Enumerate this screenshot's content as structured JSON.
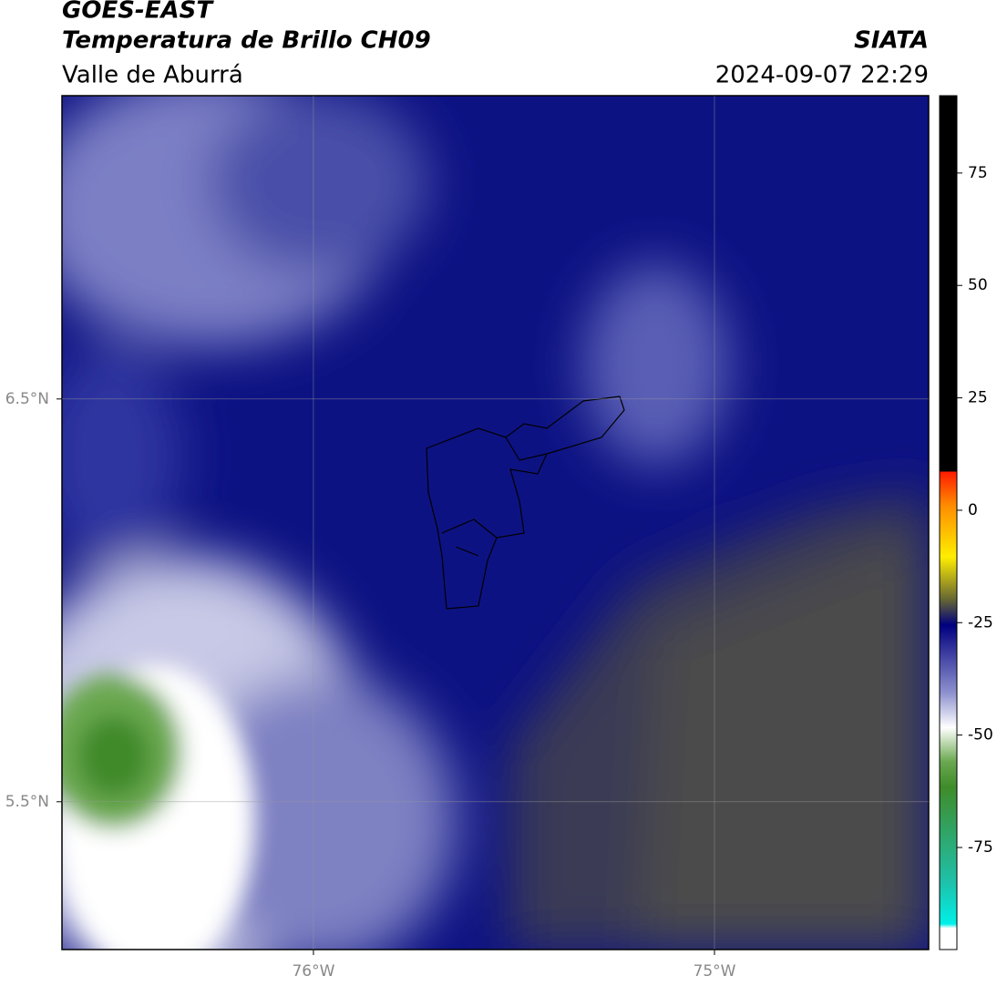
{
  "header": {
    "title": "GOES-EAST",
    "subtitle": "Temperatura de Brillo CH09",
    "region": "Valle de Aburrá",
    "agency": "SIATA",
    "datetime": "2024-09-07 22:29"
  },
  "map": {
    "xlim": [
      -76.627,
      -74.466
    ],
    "ylim": [
      5.133,
      7.253
    ],
    "xticks": [
      {
        "value": -76,
        "label": "76°W"
      },
      {
        "value": -75,
        "label": "75°W"
      }
    ],
    "yticks": [
      {
        "value": 6.5,
        "label": "6.5°N"
      },
      {
        "value": 5.5,
        "label": "5.5°N"
      }
    ],
    "grid": true
  },
  "colorbar": {
    "lim": [
      -97.7,
      92.2
    ],
    "ticks": [
      75,
      50,
      25,
      0,
      -25,
      -50,
      -75
    ]
  }
}
